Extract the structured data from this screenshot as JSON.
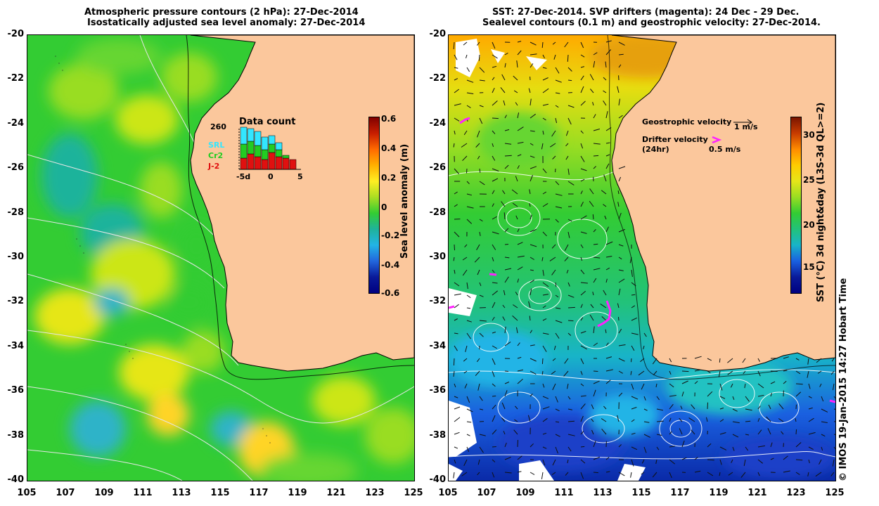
{
  "left_panel": {
    "title_line1": "Atmospheric pressure contours (2 hPa): 27-Dec-2014",
    "title_line2": "Isostatically adjusted sea level anomaly: 27-Dec-2014",
    "colorbar": {
      "label": "Sea level anomaly (m)",
      "ticks": [
        "0.6",
        "0.4",
        "0.2",
        "0",
        "-0.2",
        "-0.4",
        "-0.6"
      ]
    },
    "inset": {
      "title": "Data count",
      "count": "260",
      "legend": [
        {
          "name": "SRL",
          "color": "#33e6ff"
        },
        {
          "name": "Cr2",
          "color": "#22cc22"
        },
        {
          "name": "J-2",
          "color": "#e01010"
        }
      ],
      "x_ticks": [
        "-5d",
        "0",
        "5"
      ]
    }
  },
  "right_panel": {
    "title_line1": "SST: 27-Dec-2014. SVP drifters (magenta): 24 Dec - 29 Dec.",
    "title_line2": "Sealevel contours (0.1 m) and geostrophic velocity: 27-Dec-2014.",
    "colorbar": {
      "label": "SST (°C) 3d night&day (L3S-3d QL>=2)",
      "ticks": [
        "30",
        "25",
        "20",
        "15"
      ]
    },
    "geo_label": "Geostrophic velocity",
    "geo_scale": "1 m/s",
    "drifter_label": "Drifter velocity",
    "drifter_sub": "(24hr)",
    "drifter_scale": "0.5 m/s"
  },
  "y_ticks": [
    "-20",
    "-22",
    "-24",
    "-26",
    "-28",
    "-30",
    "-32",
    "-34",
    "-36",
    "-38",
    "-40"
  ],
  "x_ticks": [
    "105",
    "107",
    "109",
    "111",
    "113",
    "115",
    "117",
    "119",
    "121",
    "123",
    "125"
  ],
  "credit": "© IMOS 19-Jan-2015 14:27 Hobart Time",
  "colors": {
    "land": "#fbc79c",
    "coast": "#000000"
  }
}
